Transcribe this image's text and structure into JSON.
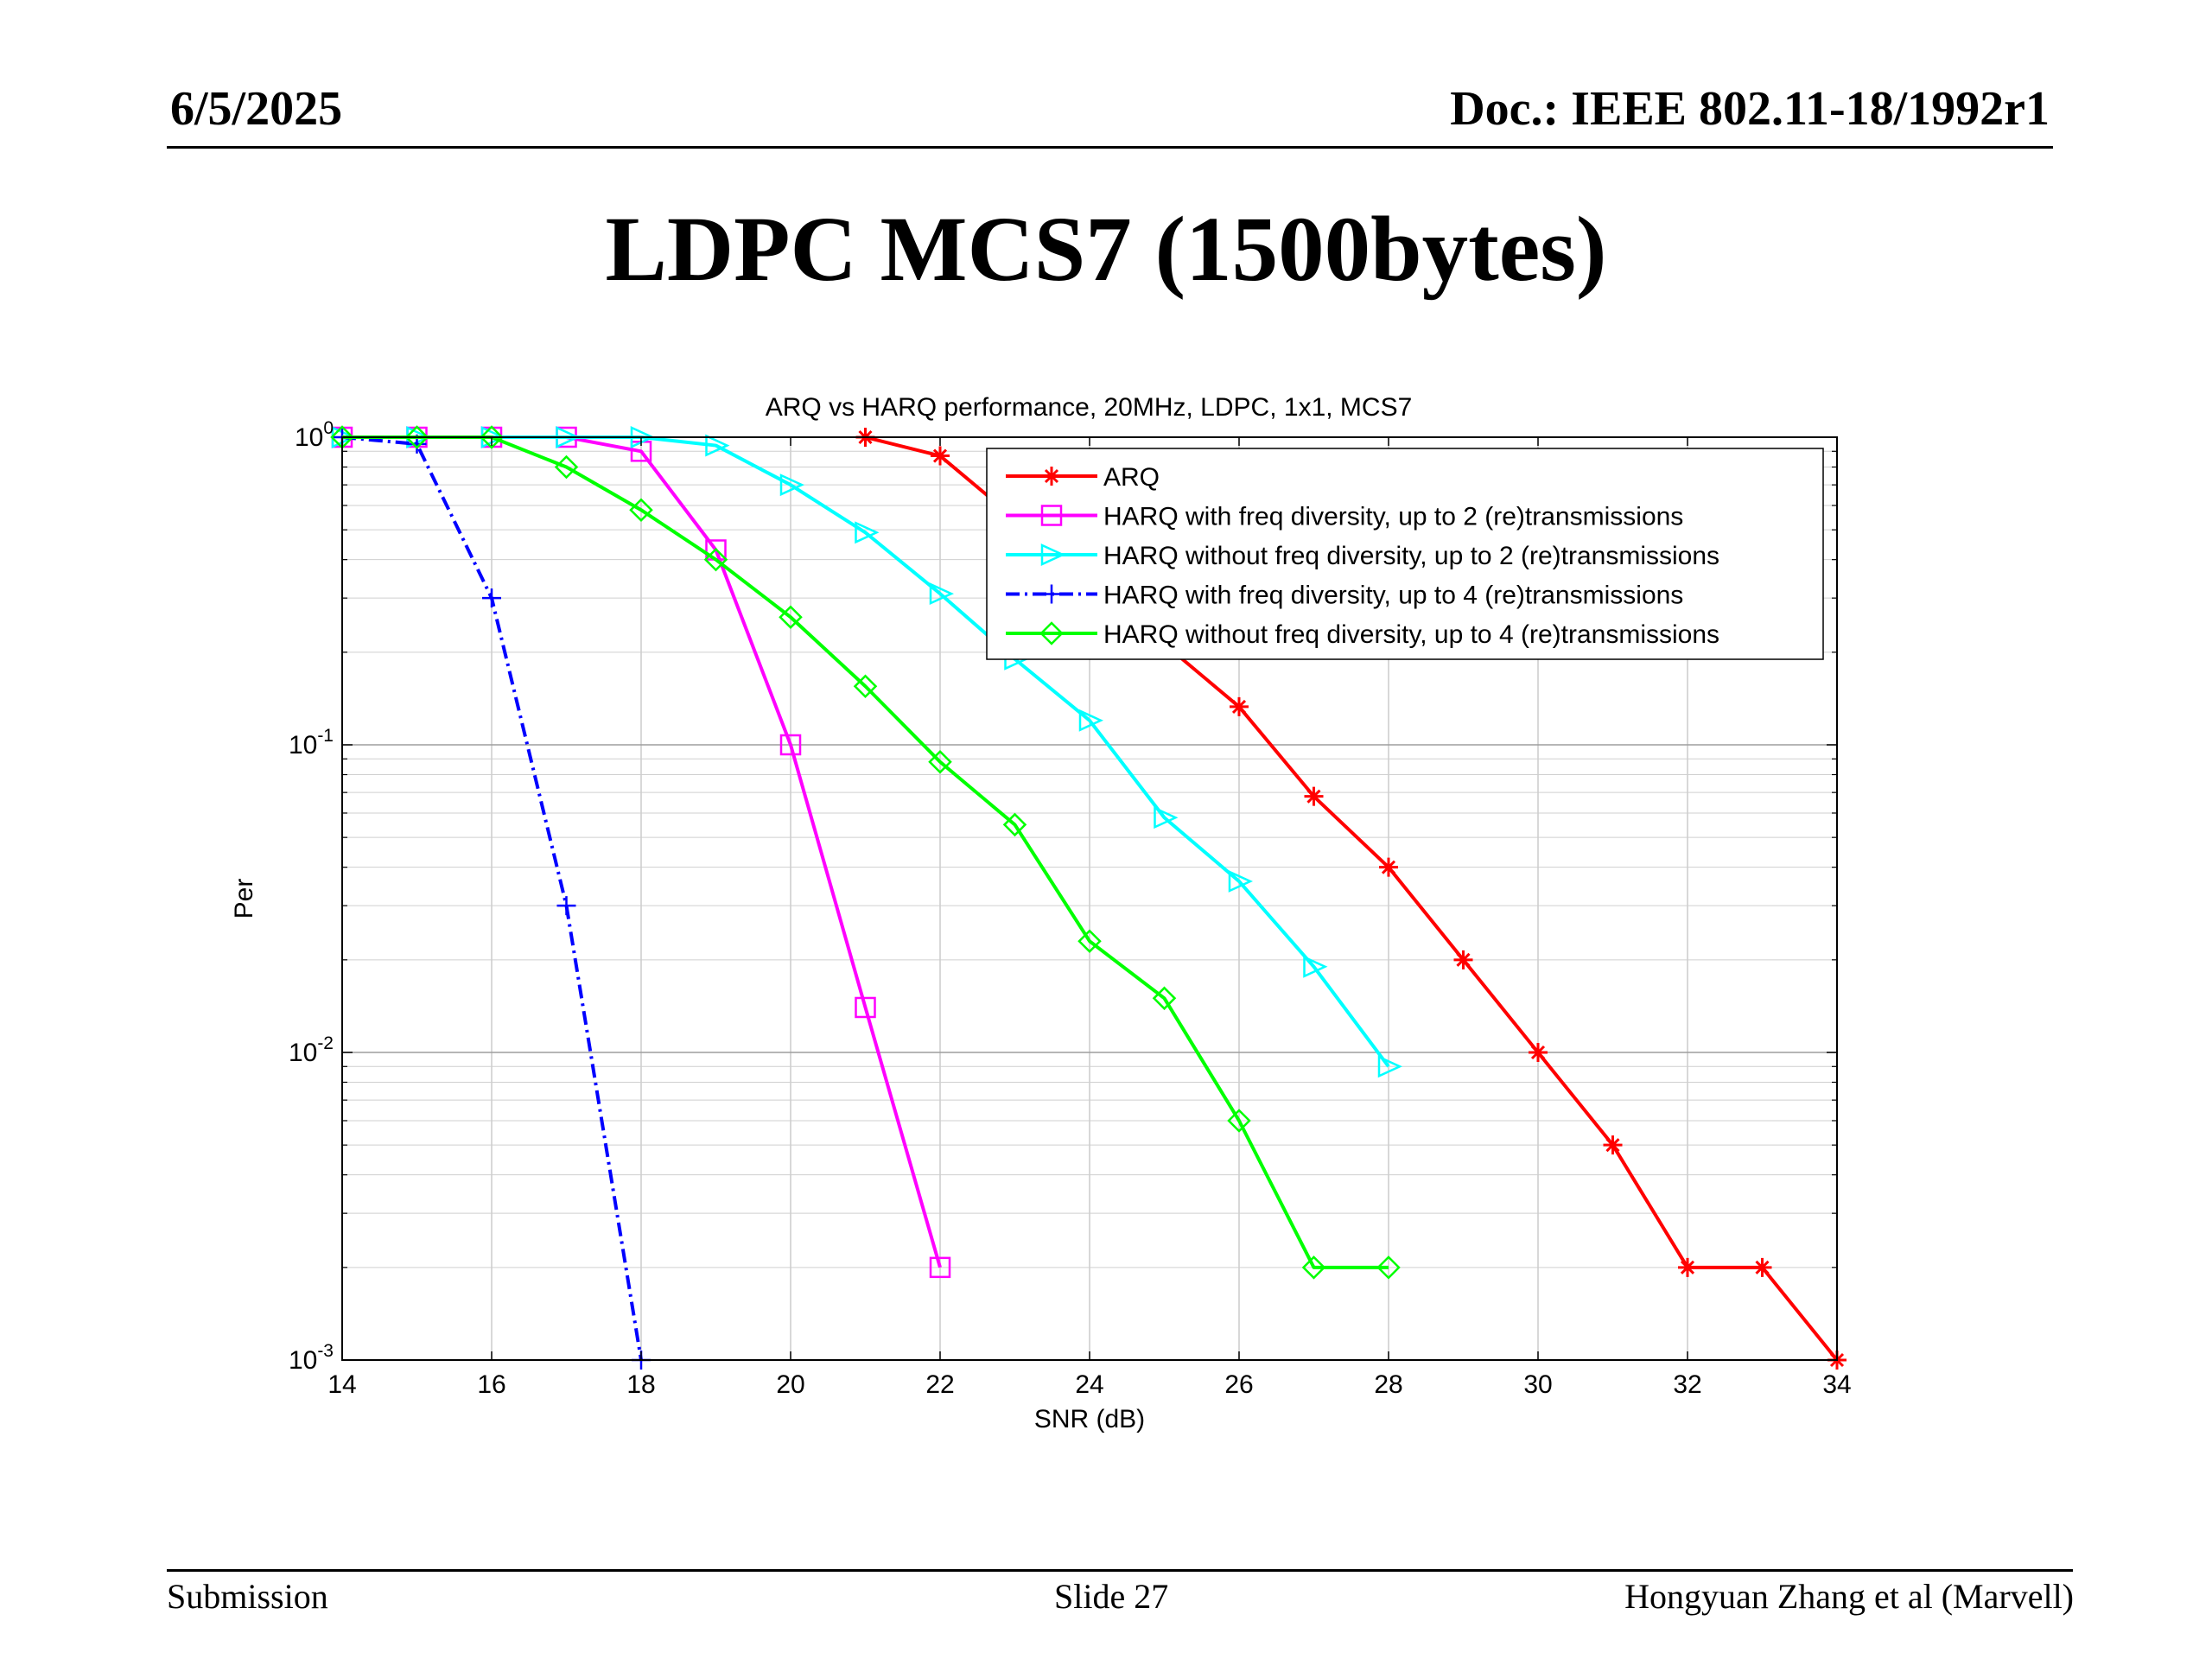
{
  "header": {
    "date": "6/5/2025",
    "doc": "Doc.: IEEE 802.11-18/1992r1"
  },
  "slide_title": "LDPC MCS7 (1500bytes)",
  "footer": {
    "left": "Submission",
    "center": "Slide 27",
    "right": "Hongyuan Zhang et al (Marvell)"
  },
  "chart_data": {
    "type": "line",
    "title": "ARQ vs HARQ performance, 20MHz, LDPC, 1x1, MCS7",
    "xlabel": "SNR (dB)",
    "ylabel": "Per",
    "xlim": [
      14,
      34
    ],
    "ylim": [
      0.001,
      1
    ],
    "yscale": "log",
    "grid": true,
    "legend_position": "top-right",
    "x_ticks": [
      "14",
      "16",
      "18",
      "20",
      "22",
      "24",
      "26",
      "28",
      "30",
      "32",
      "34"
    ],
    "y_ticks": [
      {
        "base": "10",
        "exp": "0",
        "value": 1
      },
      {
        "base": "10",
        "exp": "-1",
        "value": 0.1
      },
      {
        "base": "10",
        "exp": "-2",
        "value": 0.01
      },
      {
        "base": "10",
        "exp": "-3",
        "value": 0.001
      }
    ],
    "series": [
      {
        "name": "ARQ",
        "color": "#ff0000",
        "marker": "star",
        "dash": "solid",
        "x": [
          21,
          22,
          26,
          27,
          28,
          29,
          30,
          31,
          32,
          33,
          34
        ],
        "y": [
          1.0,
          0.87,
          0.133,
          0.068,
          0.04,
          0.02,
          0.01,
          0.005,
          0.002,
          0.002,
          0.001
        ]
      },
      {
        "name": "HARQ with freq diversity, up to 2 (re)transmissions",
        "color": "#ff00ff",
        "marker": "square",
        "dash": "solid",
        "x": [
          14,
          15,
          16,
          17,
          18,
          19,
          20,
          21,
          22
        ],
        "y": [
          1.0,
          1.0,
          1.0,
          1.0,
          0.9,
          0.43,
          0.1,
          0.014,
          0.002
        ]
      },
      {
        "name": "HARQ without freq diversity, up to 2 (re)transmissions",
        "color": "#00ffff",
        "marker": "triangle-right",
        "dash": "solid",
        "x": [
          14,
          15,
          16,
          17,
          18,
          19,
          20,
          21,
          22,
          23,
          24,
          25,
          26,
          27,
          28
        ],
        "y": [
          1.0,
          1.0,
          1.0,
          1.0,
          1.0,
          0.94,
          0.7,
          0.49,
          0.31,
          0.19,
          0.12,
          0.058,
          0.036,
          0.019,
          0.009
        ]
      },
      {
        "name": "HARQ with freq diversity, up to 4 (re)transmissions",
        "color": "#0000ff",
        "marker": "plus",
        "dash": "dashdot",
        "x": [
          14,
          15,
          16,
          17,
          18
        ],
        "y": [
          1.0,
          0.95,
          0.3,
          0.03,
          0.001
        ]
      },
      {
        "name": "HARQ without freq diversity, up to 4 (re)transmissions",
        "color": "#00ff00",
        "marker": "diamond",
        "dash": "solid",
        "x": [
          14,
          15,
          16,
          17,
          18,
          19,
          20,
          21,
          22,
          23,
          24,
          25,
          26,
          27,
          28
        ],
        "y": [
          1.0,
          1.0,
          1.0,
          0.8,
          0.58,
          0.4,
          0.26,
          0.155,
          0.088,
          0.055,
          0.023,
          0.015,
          0.006,
          0.002,
          0.002
        ]
      }
    ]
  }
}
